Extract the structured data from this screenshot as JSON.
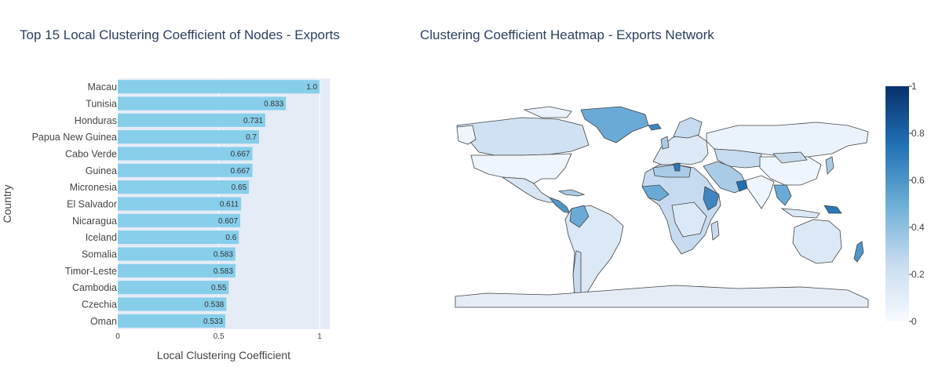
{
  "chart_data": [
    {
      "type": "bar",
      "orientation": "horizontal",
      "title": "Top 15 Local Clustering Coefficient of Nodes - Exports",
      "xlabel": "Local Clustering Coefficient",
      "ylabel": "Country",
      "xlim": [
        0,
        1.05
      ],
      "xticks": [
        {
          "value": 0,
          "label": "0"
        },
        {
          "value": 0.5,
          "label": "0.5"
        },
        {
          "value": 1,
          "label": "1"
        }
      ],
      "grid": true,
      "bar_color": "#87ceeb",
      "categories": [
        "Macau",
        "Tunisia",
        "Honduras",
        "Papua New Guinea",
        "Cabo Verde",
        "Guinea",
        "Micronesia",
        "El Salvador",
        "Nicaragua",
        "Iceland",
        "Somalia",
        "Timor-Leste",
        "Cambodia",
        "Czechia",
        "Oman"
      ],
      "values": [
        1.0,
        0.833,
        0.731,
        0.7,
        0.667,
        0.667,
        0.65,
        0.611,
        0.607,
        0.6,
        0.583,
        0.583,
        0.55,
        0.538,
        0.533
      ],
      "value_labels": [
        "1.0",
        "0.833",
        "0.731",
        "0.7",
        "0.667",
        "0.667",
        "0.65",
        "0.611",
        "0.607",
        "0.6",
        "0.583",
        "0.583",
        "0.55",
        "0.538",
        "0.533"
      ]
    },
    {
      "type": "heatmap",
      "subtype": "choropleth-world-map",
      "title": "Clustering Coefficient Heatmap - Exports Network",
      "colorscale": "Blues",
      "colorscale_stops": [
        "#f7fbff",
        "#c6dbef",
        "#6baed6",
        "#2171b5",
        "#08306b"
      ],
      "range": [
        0,
        1
      ],
      "colorbar_ticks": [
        "0",
        "0.2",
        "0.4",
        "0.6",
        "0.8",
        "1"
      ],
      "no_data_color": "#e5ecf6"
    }
  ]
}
